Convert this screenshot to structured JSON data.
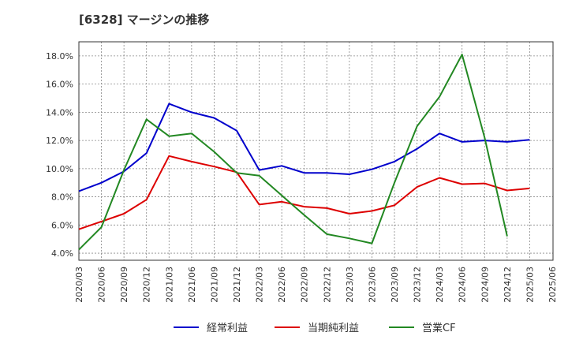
{
  "chart_data": {
    "type": "line",
    "title": "[6328]  マージンの推移",
    "categories": [
      "2020/03",
      "2020/06",
      "2020/09",
      "2020/12",
      "2021/03",
      "2021/06",
      "2021/09",
      "2021/12",
      "2022/03",
      "2022/06",
      "2022/09",
      "2022/12",
      "2023/03",
      "2023/06",
      "2023/09",
      "2023/12",
      "2024/03",
      "2024/06",
      "2024/09",
      "2024/12",
      "2025/03",
      "2025/06"
    ],
    "ylim": [
      3.5,
      19.0
    ],
    "yticks": [
      4.0,
      6.0,
      8.0,
      10.0,
      12.0,
      14.0,
      16.0,
      18.0
    ],
    "ytick_labels": [
      "4.0%",
      "6.0%",
      "8.0%",
      "10.0%",
      "12.0%",
      "14.0%",
      "16.0%",
      "18.0%"
    ],
    "grid": true,
    "legend_position": "bottom",
    "series": [
      {
        "name": "経常利益",
        "color": "#0000cc",
        "values": [
          8.4,
          9.0,
          9.8,
          11.1,
          14.6,
          14.0,
          13.6,
          12.7,
          9.9,
          10.2,
          9.7,
          9.7,
          9.6,
          9.95,
          10.5,
          11.4,
          12.5,
          11.9,
          12.0,
          11.9,
          12.05,
          null
        ]
      },
      {
        "name": "当期純利益",
        "color": "#dd0000",
        "values": [
          5.7,
          6.25,
          6.8,
          7.8,
          10.9,
          10.5,
          10.15,
          9.75,
          7.45,
          7.65,
          7.3,
          7.2,
          6.8,
          7.0,
          7.4,
          8.7,
          9.35,
          8.9,
          8.95,
          8.45,
          8.6,
          null
        ]
      },
      {
        "name": "営業CF",
        "color": "#228822",
        "values": [
          4.25,
          5.85,
          9.9,
          13.5,
          12.3,
          12.5,
          11.2,
          9.7,
          9.5,
          8.1,
          6.7,
          5.35,
          5.05,
          4.7,
          9.0,
          13.0,
          15.1,
          18.1,
          12.2,
          5.2,
          null,
          null
        ]
      }
    ]
  }
}
